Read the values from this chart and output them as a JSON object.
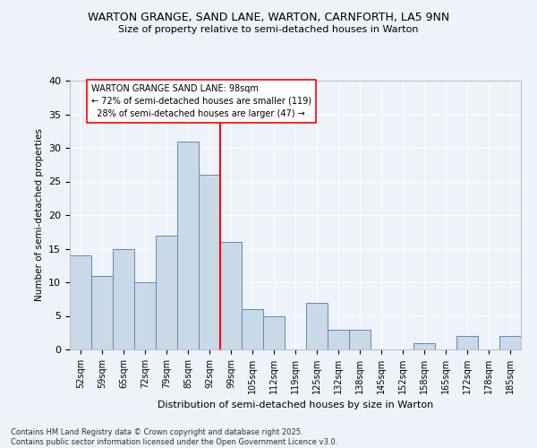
{
  "title": "WARTON GRANGE, SAND LANE, WARTON, CARNFORTH, LA5 9NN",
  "subtitle": "Size of property relative to semi-detached houses in Warton",
  "xlabel": "Distribution of semi-detached houses by size in Warton",
  "ylabel": "Number of semi-detached properties",
  "categories": [
    "52sqm",
    "59sqm",
    "65sqm",
    "72sqm",
    "79sqm",
    "85sqm",
    "92sqm",
    "99sqm",
    "105sqm",
    "112sqm",
    "119sqm",
    "125sqm",
    "132sqm",
    "138sqm",
    "145sqm",
    "152sqm",
    "158sqm",
    "165sqm",
    "172sqm",
    "178sqm",
    "185sqm"
  ],
  "values": [
    14,
    11,
    15,
    10,
    17,
    31,
    26,
    16,
    6,
    5,
    0,
    7,
    3,
    3,
    0,
    0,
    1,
    0,
    2,
    0,
    2
  ],
  "bar_color": "#c9d9e8",
  "bar_edge_color": "#5b8db8",
  "ref_line_label": "WARTON GRANGE SAND LANE: 98sqm",
  "smaller_pct": 72,
  "smaller_count": 119,
  "larger_pct": 28,
  "larger_count": 47,
  "ylim": [
    0,
    40
  ],
  "yticks": [
    0,
    5,
    10,
    15,
    20,
    25,
    30,
    35,
    40
  ],
  "bg_color": "#eef2f9",
  "grid_color": "#ffffff",
  "footer": "Contains HM Land Registry data © Crown copyright and database right 2025.\nContains public sector information licensed under the Open Government Licence v3.0."
}
